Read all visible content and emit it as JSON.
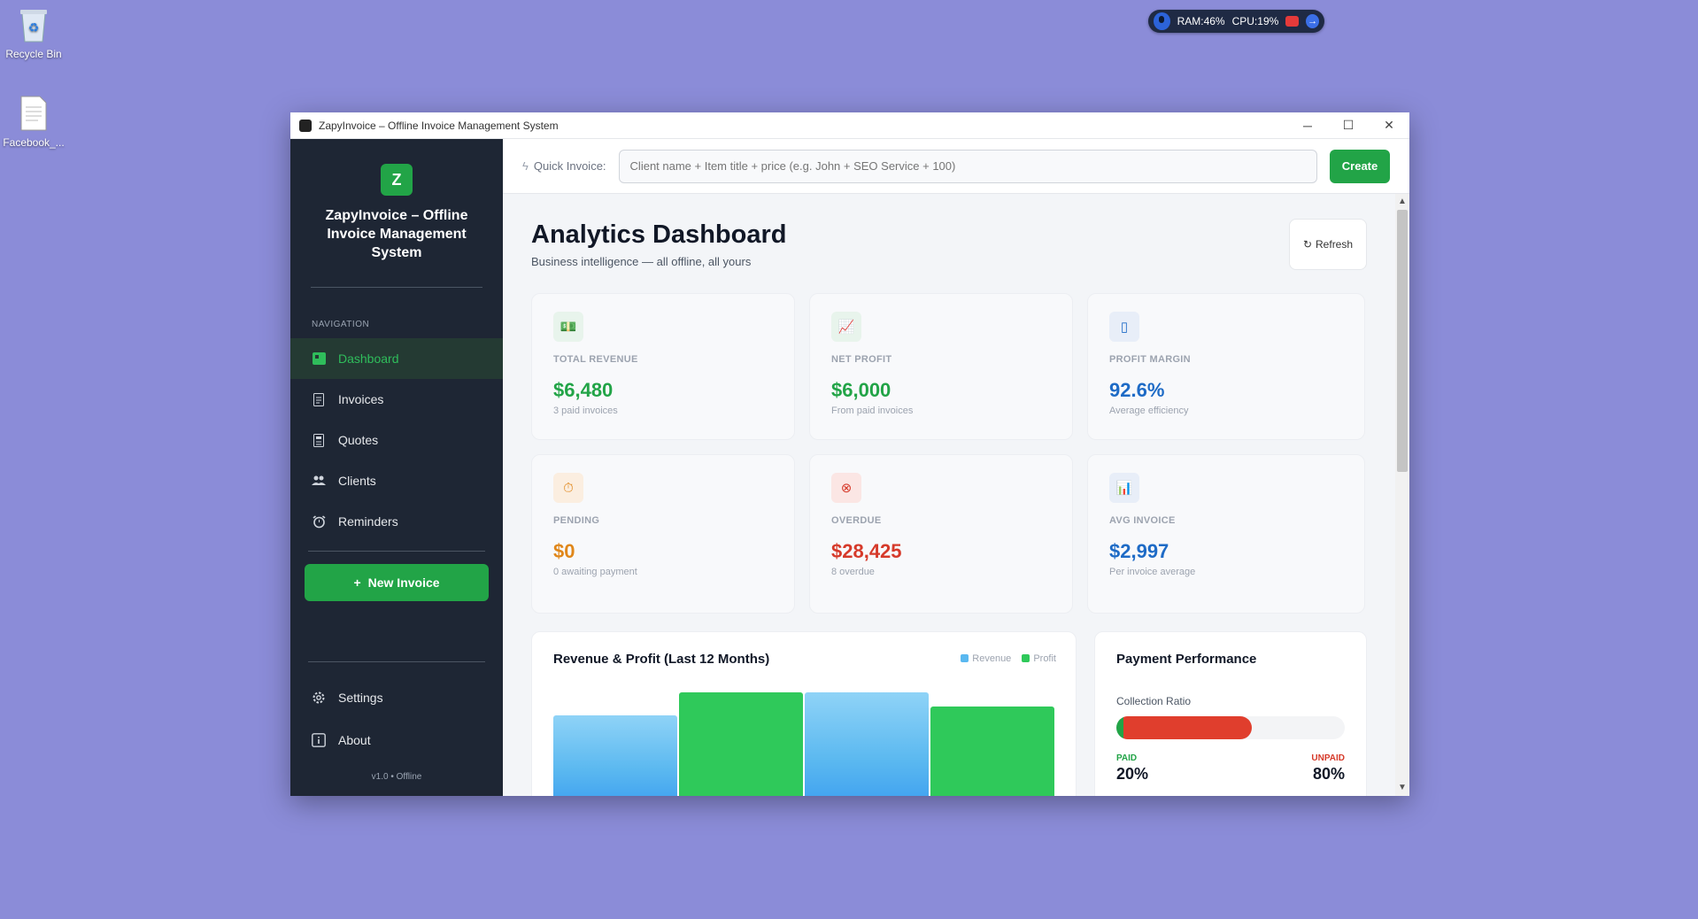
{
  "desktop": {
    "icons": [
      {
        "label": "Recycle Bin",
        "icon": "recycle-bin-icon"
      },
      {
        "label": "Facebook_...",
        "icon": "document-icon"
      }
    ]
  },
  "system_widget": {
    "ram": "RAM:46%",
    "cpu": "CPU:19%"
  },
  "window": {
    "title": "ZapyInvoice – Offline Invoice Management System",
    "controls": {
      "minimize": "─",
      "maximize": "☐",
      "close": "✕"
    }
  },
  "sidebar": {
    "logo_letter": "Z",
    "app_name": "ZapyInvoice – Offline Invoice Management System",
    "nav_heading": "NAVIGATION",
    "items": [
      {
        "label": "Dashboard",
        "icon": "dashboard-icon",
        "active": true
      },
      {
        "label": "Invoices",
        "icon": "invoice-icon"
      },
      {
        "label": "Quotes",
        "icon": "quote-icon"
      },
      {
        "label": "Clients",
        "icon": "clients-icon"
      },
      {
        "label": "Reminders",
        "icon": "alarm-icon"
      }
    ],
    "new_invoice": "New Invoice",
    "bottom_items": [
      {
        "label": "Settings",
        "icon": "gear-icon"
      },
      {
        "label": "About",
        "icon": "info-icon"
      }
    ],
    "version": "v1.0 • Offline"
  },
  "quickbar": {
    "label": "Quick Invoice:",
    "placeholder": "Client name + Item title + price (e.g. John + SEO Service + 100)",
    "create": "Create"
  },
  "dashboard": {
    "title": "Analytics Dashboard",
    "subtitle": "Business intelligence — all offline, all yours",
    "refresh": "Refresh",
    "stats": [
      {
        "label": "TOTAL REVENUE",
        "value": "$6,480",
        "sub": "3 paid invoices",
        "color": "#22a447",
        "icon_bg": "#e8f4ec",
        "icon": "money-icon",
        "glyph": "💵"
      },
      {
        "label": "NET PROFIT",
        "value": "$6,000",
        "sub": "From paid invoices",
        "color": "#22a447",
        "icon_bg": "#e8f4ec",
        "icon": "chart-icon",
        "glyph": "📈"
      },
      {
        "label": "PROFIT MARGIN",
        "value": "92.6%",
        "sub": "Average efficiency",
        "color": "#1e6bc6",
        "icon_bg": "#e8eef8",
        "icon": "target-icon",
        "glyph": "▯"
      },
      {
        "label": "PENDING",
        "value": "$0",
        "sub": "0 awaiting payment",
        "color": "#e0871a",
        "icon_bg": "#fbeee0",
        "icon": "timer-icon",
        "glyph": "⏱"
      },
      {
        "label": "OVERDUE",
        "value": "$28,425",
        "sub": "8 overdue",
        "color": "#d63a2a",
        "icon_bg": "#fbe6e4",
        "icon": "cancel-icon",
        "glyph": "⊗"
      },
      {
        "label": "AVG INVOICE",
        "value": "$2,997",
        "sub": "Per invoice average",
        "color": "#1e6bc6",
        "icon_bg": "#e8eef8",
        "icon": "report-icon",
        "glyph": "📊"
      }
    ],
    "revenue_chart": {
      "title": "Revenue & Profit (Last 12 Months)",
      "legend": [
        {
          "label": "Revenue",
          "color": "#5ab8f0"
        },
        {
          "label": "Profit",
          "color": "#2fc95a"
        }
      ]
    },
    "payment": {
      "title": "Payment Performance",
      "ratio_label": "Collection Ratio",
      "paid_label": "PAID",
      "paid_value": "20%",
      "unpaid_label": "UNPAID",
      "unpaid_value": "80%",
      "paid_fraction": 0.2,
      "unpaid_fraction": 0.8
    }
  },
  "chart_data": {
    "type": "bar",
    "title": "Revenue & Profit (Last 12 Months)",
    "series": [
      {
        "name": "Revenue",
        "values": [
          0.8,
          1.0
        ]
      },
      {
        "name": "Profit",
        "values": [
          1.0,
          0.88
        ]
      }
    ],
    "colors": {
      "Revenue": "#5ab8f0",
      "Profit": "#2fc95a"
    }
  }
}
